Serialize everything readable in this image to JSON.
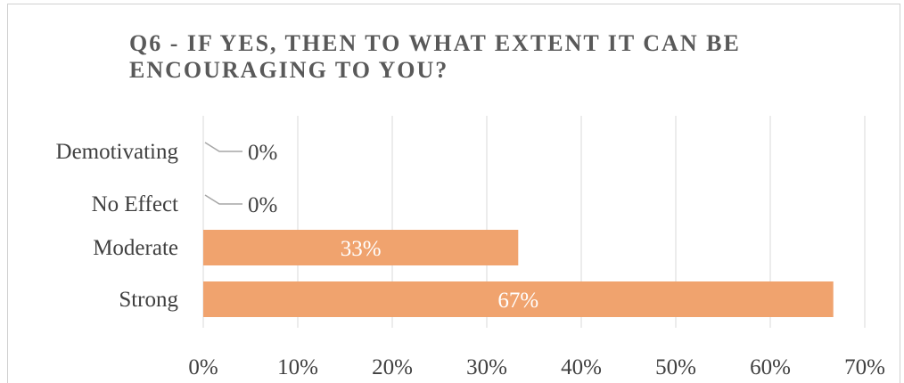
{
  "chart_data": {
    "type": "bar",
    "orientation": "horizontal",
    "title": "Q6 - IF YES, THEN TO WHAT EXTENT IT CAN BE ENCOURAGING TO YOU?",
    "categories": [
      "Demotivating",
      "No Effect",
      "Moderate",
      "Strong"
    ],
    "values": [
      0,
      0,
      33.33,
      66.67
    ],
    "data_labels": [
      "0%",
      "0%",
      "33%",
      "67%"
    ],
    "x_ticks": [
      "0%",
      "10%",
      "20%",
      "30%",
      "40%",
      "50%",
      "60%",
      "70%"
    ],
    "xlim": [
      0,
      70
    ],
    "grid": true,
    "legend": "none",
    "bar_color": "#f0a36e",
    "grid_color": "#d9d9d9",
    "leader_line_color": "#a6a6a6"
  }
}
